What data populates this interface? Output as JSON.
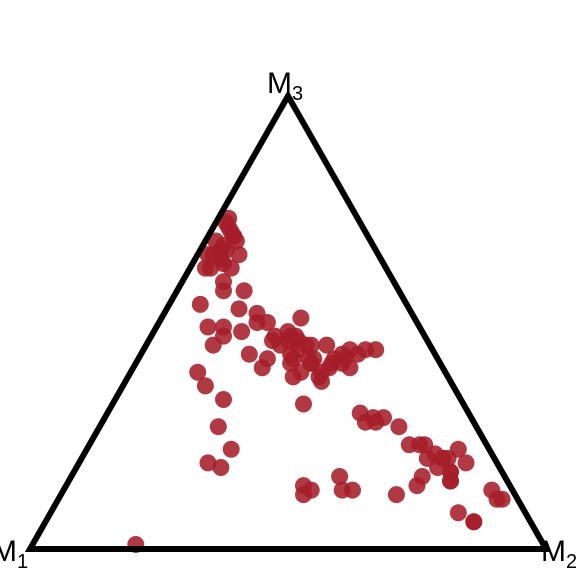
{
  "chart_data": {
    "type": "scatter",
    "layout": "ternary",
    "vertices": [
      {
        "name": "M",
        "sub": "1",
        "corner": "bottom-left"
      },
      {
        "name": "M",
        "sub": "2",
        "corner": "bottom-right"
      },
      {
        "name": "M",
        "sub": "3",
        "corner": "top"
      }
    ],
    "point_color": "#a51e2a",
    "point_opacity": 0.88,
    "frame_color": "#000000",
    "series": [
      {
        "points": [
          [
            0.3,
            0.02,
            0.68
          ],
          [
            0.3,
            0.04,
            0.66
          ],
          [
            0.26,
            0.05,
            0.69
          ],
          [
            0.31,
            0.05,
            0.64
          ],
          [
            0.27,
            0.08,
            0.65
          ],
          [
            0.26,
            0.06,
            0.68
          ],
          [
            0.26,
            0.05,
            0.69
          ],
          [
            0.29,
            0.05,
            0.66
          ],
          [
            0.26,
            0.03,
            0.71
          ],
          [
            0.26,
            0.04,
            0.7
          ],
          [
            0.26,
            0.02,
            0.72
          ],
          [
            0.3,
            0.04,
            0.66
          ],
          [
            0.29,
            0.04,
            0.67
          ],
          [
            0.25,
            0.02,
            0.73
          ],
          [
            0.33,
            0.02,
            0.65
          ],
          [
            0.31,
            0.06,
            0.63
          ],
          [
            0.34,
            0.04,
            0.62
          ],
          [
            0.3,
            0.08,
            0.62
          ],
          [
            0.33,
            0.08,
            0.59
          ],
          [
            0.41,
            0.1,
            0.49
          ],
          [
            0.39,
            0.14,
            0.47
          ],
          [
            0.48,
            0.16,
            0.36
          ],
          [
            0.48,
            0.13,
            0.39
          ],
          [
            0.42,
            0.13,
            0.45
          ],
          [
            0.46,
            0.21,
            0.33
          ],
          [
            0.31,
            0.05,
            0.64
          ],
          [
            0.32,
            0.03,
            0.65
          ],
          [
            0.35,
            0.03,
            0.62
          ],
          [
            0.4,
            0.06,
            0.54
          ],
          [
            0.34,
            0.09,
            0.57
          ],
          [
            0.35,
            0.17,
            0.48
          ],
          [
            0.38,
            0.13,
            0.49
          ],
          [
            0.3,
            0.18,
            0.52
          ],
          [
            0.3,
            0.13,
            0.57
          ],
          [
            0.33,
            0.14,
            0.53
          ],
          [
            0.31,
            0.19,
            0.5
          ],
          [
            0.29,
            0.21,
            0.5
          ],
          [
            0.33,
            0.25,
            0.42
          ],
          [
            0.29,
            0.26,
            0.45
          ],
          [
            0.26,
            0.26,
            0.48
          ],
          [
            0.36,
            0.21,
            0.43
          ],
          [
            0.22,
            0.27,
            0.51
          ],
          [
            0.25,
            0.29,
            0.46
          ],
          [
            0.27,
            0.27,
            0.46
          ],
          [
            0.26,
            0.27,
            0.47
          ],
          [
            0.29,
            0.24,
            0.47
          ],
          [
            0.26,
            0.3,
            0.44
          ],
          [
            0.35,
            0.25,
            0.4
          ],
          [
            0.3,
            0.24,
            0.46
          ],
          [
            0.31,
            0.37,
            0.32
          ],
          [
            0.23,
            0.32,
            0.45
          ],
          [
            0.25,
            0.34,
            0.41
          ],
          [
            0.25,
            0.37,
            0.38
          ],
          [
            0.28,
            0.3,
            0.42
          ],
          [
            0.3,
            0.32,
            0.38
          ],
          [
            0.28,
            0.33,
            0.39
          ],
          [
            0.29,
            0.3,
            0.41
          ],
          [
            0.28,
            0.29,
            0.43
          ],
          [
            0.24,
            0.31,
            0.45
          ],
          [
            0.25,
            0.28,
            0.47
          ],
          [
            0.24,
            0.34,
            0.42
          ],
          [
            0.25,
            0.33,
            0.42
          ],
          [
            0.25,
            0.34,
            0.41
          ],
          [
            0.21,
            0.38,
            0.41
          ],
          [
            0.22,
            0.38,
            0.4
          ],
          [
            0.2,
            0.35,
            0.45
          ],
          [
            0.25,
            0.38,
            0.37
          ],
          [
            0.24,
            0.37,
            0.39
          ],
          [
            0.2,
            0.38,
            0.42
          ],
          [
            0.18,
            0.4,
            0.42
          ],
          [
            0.19,
            0.4,
            0.41
          ],
          [
            0.18,
            0.39,
            0.43
          ],
          [
            0.16,
            0.4,
            0.44
          ],
          [
            0.18,
            0.42,
            0.4
          ],
          [
            0.15,
            0.42,
            0.43
          ],
          [
            0.13,
            0.43,
            0.44
          ],
          [
            0.11,
            0.45,
            0.44
          ],
          [
            0.21,
            0.49,
            0.3
          ],
          [
            0.19,
            0.52,
            0.29
          ],
          [
            0.21,
            0.51,
            0.28
          ],
          [
            0.19,
            0.53,
            0.28
          ],
          [
            0.17,
            0.54,
            0.29
          ],
          [
            0.15,
            0.58,
            0.27
          ],
          [
            0.15,
            0.62,
            0.23
          ],
          [
            0.13,
            0.67,
            0.2
          ],
          [
            0.11,
            0.68,
            0.21
          ],
          [
            0.16,
            0.68,
            0.16
          ],
          [
            0.1,
            0.7,
            0.2
          ],
          [
            0.1,
            0.7,
            0.2
          ],
          [
            0.13,
            0.64,
            0.23
          ],
          [
            0.12,
            0.65,
            0.23
          ],
          [
            0.06,
            0.72,
            0.22
          ],
          [
            0.1,
            0.73,
            0.17
          ],
          [
            0.11,
            0.74,
            0.15
          ],
          [
            0.04,
            0.85,
            0.11
          ],
          [
            0.04,
            0.83,
            0.13
          ],
          [
            0.03,
            0.86,
            0.11
          ],
          [
            0.06,
            0.75,
            0.19
          ],
          [
            0.09,
            0.71,
            0.2
          ],
          [
            0.12,
            0.7,
            0.18
          ],
          [
            0.1,
            0.73,
            0.17
          ],
          [
            0.11,
            0.74,
            0.15
          ],
          [
            0.13,
            0.79,
            0.08
          ],
          [
            0.11,
            0.83,
            0.06
          ],
          [
            0.11,
            0.83,
            0.06
          ],
          [
            0.31,
            0.56,
            0.13
          ],
          [
            0.32,
            0.52,
            0.16
          ],
          [
            0.18,
            0.68,
            0.14
          ],
          [
            0.23,
            0.65,
            0.12
          ],
          [
            0.33,
            0.54,
            0.13
          ],
          [
            0.39,
            0.48,
            0.13
          ],
          [
            0.4,
            0.46,
            0.14
          ],
          [
            0.41,
            0.47,
            0.12
          ],
          [
            0.54,
            0.28,
            0.18
          ],
          [
            0.56,
            0.25,
            0.19
          ],
          [
            0.79,
            0.2,
            0.01
          ],
          [
            0.5,
            0.23,
            0.27
          ],
          [
            0.5,
            0.28,
            0.22
          ]
        ]
      }
    ]
  }
}
